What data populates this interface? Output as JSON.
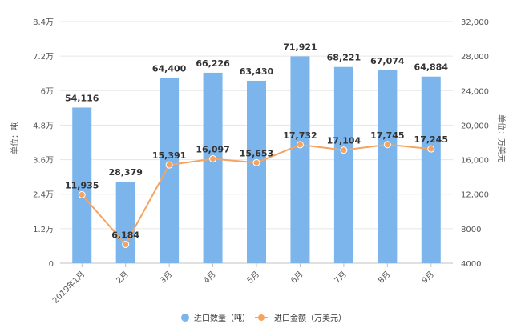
{
  "chart_data": {
    "type": "bar",
    "categories": [
      "2019年1月",
      "2月",
      "3月",
      "4月",
      "5月",
      "6月",
      "7月",
      "8月",
      "9月"
    ],
    "series": [
      {
        "name": "进口数量（吨）",
        "type": "bar",
        "axis": "left",
        "color": "#7cb5ec",
        "values": [
          54116,
          28379,
          64400,
          66226,
          63430,
          71921,
          68221,
          67074,
          64884
        ],
        "labels": [
          "54,116",
          "28,379",
          "64,400",
          "66,226",
          "63,430",
          "71,921",
          "68,221",
          "67,074",
          "64,884"
        ]
      },
      {
        "name": "进口金额（万美元）",
        "type": "line",
        "axis": "right",
        "color": "#f4a460",
        "values": [
          11935,
          6184,
          15391,
          16097,
          15653,
          17732,
          17104,
          17745,
          17245
        ],
        "labels": [
          "11,935",
          "6,184",
          "15,391",
          "16,097",
          "15,653",
          "17,732",
          "17,104",
          "17,745",
          "17,245"
        ]
      }
    ],
    "left_axis": {
      "label": "单位：吨",
      "min": 0,
      "max": 84000,
      "ticks": [
        0,
        12000,
        24000,
        36000,
        48000,
        60000,
        72000,
        84000
      ],
      "tick_labels": [
        "0",
        "1.2万",
        "2.4万",
        "3.6万",
        "4.8万",
        "6万",
        "7.2万",
        "8.4万"
      ]
    },
    "right_axis": {
      "label": "单位：万美元",
      "min": 4000,
      "max": 32000,
      "ticks": [
        4000,
        8000,
        12000,
        16000,
        20000,
        24000,
        28000,
        32000
      ],
      "tick_labels": [
        "4000",
        "8000",
        "12,000",
        "16,000",
        "20,000",
        "24,000",
        "28,000",
        "32,000"
      ]
    },
    "grid": true,
    "legend_position": "bottom-center"
  }
}
